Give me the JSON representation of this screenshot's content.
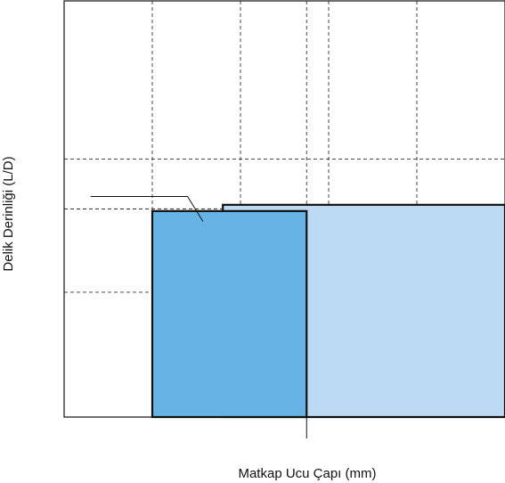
{
  "chart_data": {
    "type": "bar",
    "title": "",
    "xlabel": "Matkap Ucu Çapı (mm)",
    "ylabel": "Delik Derinliği (L/D)",
    "xlim": [
      0,
      10
    ],
    "ylim": [
      0,
      10
    ],
    "grid": true,
    "x_gridlines": [
      2,
      4,
      5.5,
      6,
      8
    ],
    "y_gridlines": [
      3,
      5,
      6.2
    ],
    "reference_tick_x": 5.5,
    "series": [
      {
        "x_start": 3.6,
        "x_end": 10,
        "value": 5.1,
        "color": "#bcdaf4",
        "layer": "back"
      },
      {
        "x_start": 2,
        "x_end": 5.5,
        "value": 4.95,
        "color": "#66b3e5",
        "layer": "front"
      }
    ],
    "annotation_leader": {
      "from_x": 0.6,
      "from_y": 5.3,
      "corner_x": 2.8,
      "to_x": 3.15,
      "to_y": 4.7
    }
  }
}
